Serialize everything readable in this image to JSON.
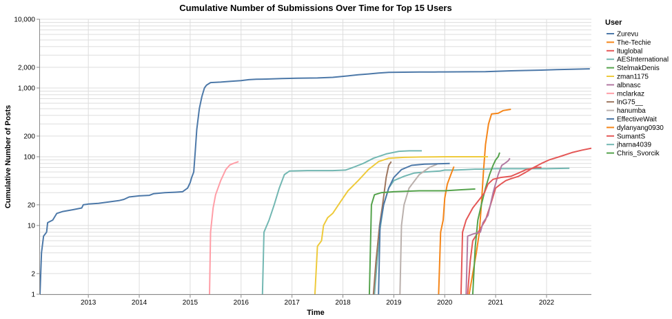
{
  "chart_data": {
    "type": "line",
    "title": "Cumulative Number of Submissions Over Time for Top 15 Users",
    "xlabel": "Time",
    "ylabel": "Cumulative Number of Posts",
    "yscale": "log",
    "ylim": [
      1,
      10000
    ],
    "xlim": [
      2012.05,
      2022.88
    ],
    "x_tick_labels": [
      "2013",
      "2014",
      "2015",
      "2016",
      "2017",
      "2018",
      "2019",
      "2020",
      "2021",
      "2022"
    ],
    "x_tick_values": [
      2013,
      2014,
      2015,
      2016,
      2017,
      2018,
      2019,
      2020,
      2021,
      2022
    ],
    "y_tick_labels": [
      "1",
      "2",
      "10",
      "20",
      "100",
      "200",
      "1,000",
      "2,000",
      "10,000"
    ],
    "y_tick_values": [
      1,
      2,
      10,
      20,
      100,
      200,
      1000,
      2000,
      10000
    ],
    "grid": true,
    "legend_title": "User",
    "legend_position": "right",
    "series": [
      {
        "name": "Zurevu",
        "color": "#4c78a8",
        "points": [
          [
            2012.05,
            1
          ],
          [
            2012.08,
            4
          ],
          [
            2012.12,
            7
          ],
          [
            2012.18,
            8
          ],
          [
            2012.2,
            11
          ],
          [
            2012.3,
            12
          ],
          [
            2012.38,
            15
          ],
          [
            2012.5,
            16
          ],
          [
            2012.7,
            17
          ],
          [
            2012.87,
            18
          ],
          [
            2012.9,
            20
          ],
          [
            2013.0,
            20.5
          ],
          [
            2013.2,
            21
          ],
          [
            2013.4,
            22
          ],
          [
            2013.6,
            23
          ],
          [
            2013.7,
            24
          ],
          [
            2013.8,
            26
          ],
          [
            2014.0,
            27
          ],
          [
            2014.2,
            27.5
          ],
          [
            2014.28,
            29
          ],
          [
            2014.5,
            30
          ],
          [
            2014.7,
            30.5
          ],
          [
            2014.85,
            31
          ],
          [
            2014.95,
            35
          ],
          [
            2015.0,
            42
          ],
          [
            2015.03,
            50
          ],
          [
            2015.07,
            60
          ],
          [
            2015.1,
            120
          ],
          [
            2015.13,
            250
          ],
          [
            2015.18,
            500
          ],
          [
            2015.23,
            750
          ],
          [
            2015.28,
            1000
          ],
          [
            2015.32,
            1100
          ],
          [
            2015.4,
            1200
          ],
          [
            2015.6,
            1220
          ],
          [
            2015.8,
            1250
          ],
          [
            2016.0,
            1280
          ],
          [
            2016.15,
            1320
          ],
          [
            2016.3,
            1340
          ],
          [
            2016.5,
            1350
          ],
          [
            2016.8,
            1370
          ],
          [
            2017.1,
            1390
          ],
          [
            2017.5,
            1400
          ],
          [
            2017.8,
            1430
          ],
          [
            2018.1,
            1500
          ],
          [
            2018.3,
            1560
          ],
          [
            2018.5,
            1600
          ],
          [
            2018.7,
            1650
          ],
          [
            2018.9,
            1690
          ],
          [
            2019.2,
            1700
          ],
          [
            2019.5,
            1705
          ],
          [
            2019.8,
            1710
          ],
          [
            2020.0,
            1715
          ],
          [
            2020.5,
            1720
          ],
          [
            2020.8,
            1730
          ],
          [
            2021.0,
            1750
          ],
          [
            2021.3,
            1780
          ],
          [
            2021.6,
            1800
          ],
          [
            2021.9,
            1820
          ],
          [
            2022.2,
            1850
          ],
          [
            2022.5,
            1870
          ],
          [
            2022.85,
            1900
          ]
        ]
      },
      {
        "name": "The-Techie",
        "color": "#f58518",
        "points": [
          [
            2020.48,
            1
          ],
          [
            2020.55,
            2
          ],
          [
            2020.62,
            4
          ],
          [
            2020.68,
            8
          ],
          [
            2020.72,
            20
          ],
          [
            2020.76,
            60
          ],
          [
            2020.8,
            150
          ],
          [
            2020.86,
            300
          ],
          [
            2020.92,
            420
          ],
          [
            2021.05,
            430
          ],
          [
            2021.15,
            470
          ],
          [
            2021.3,
            490
          ]
        ]
      },
      {
        "name": "ltuglobal",
        "color": "#e45756",
        "points": [
          [
            2020.45,
            1
          ],
          [
            2020.5,
            3
          ],
          [
            2020.55,
            6
          ],
          [
            2020.7,
            9
          ],
          [
            2020.8,
            12
          ],
          [
            2020.9,
            20
          ],
          [
            2021.0,
            35
          ],
          [
            2021.1,
            40
          ],
          [
            2021.2,
            45
          ],
          [
            2021.3,
            48
          ],
          [
            2021.45,
            52
          ],
          [
            2021.6,
            60
          ],
          [
            2021.75,
            70
          ],
          [
            2021.9,
            80
          ],
          [
            2022.05,
            90
          ],
          [
            2022.25,
            100
          ],
          [
            2022.5,
            115
          ],
          [
            2022.7,
            125
          ],
          [
            2022.88,
            133
          ]
        ]
      },
      {
        "name": "AESInternational",
        "color": "#72b7b2",
        "points": [
          [
            2018.62,
            1
          ],
          [
            2018.72,
            8
          ],
          [
            2018.8,
            20
          ],
          [
            2018.9,
            35
          ],
          [
            2019.0,
            45
          ],
          [
            2019.2,
            52
          ],
          [
            2019.4,
            58
          ],
          [
            2019.6,
            60
          ],
          [
            2019.9,
            62
          ],
          [
            2020.0,
            64
          ],
          [
            2020.2,
            64
          ],
          [
            2020.4,
            65
          ],
          [
            2020.6,
            66
          ],
          [
            2020.8,
            66
          ],
          [
            2021.0,
            67
          ],
          [
            2021.5,
            67
          ],
          [
            2022.0,
            67
          ],
          [
            2022.45,
            68
          ]
        ]
      },
      {
        "name": "StelmakDenis",
        "color": "#54a24b",
        "points": [
          [
            2020.55,
            1
          ],
          [
            2020.6,
            5
          ],
          [
            2020.65,
            12
          ],
          [
            2020.72,
            20
          ],
          [
            2020.8,
            35
          ],
          [
            2020.88,
            55
          ],
          [
            2020.95,
            75
          ],
          [
            2021.0,
            90
          ],
          [
            2021.05,
            100
          ],
          [
            2021.08,
            115
          ]
        ]
      },
      {
        "name": "zman1175",
        "color": "#eeca3b",
        "points": [
          [
            2017.45,
            1
          ],
          [
            2017.5,
            5
          ],
          [
            2017.58,
            6
          ],
          [
            2017.62,
            10
          ],
          [
            2017.7,
            13
          ],
          [
            2017.8,
            15
          ],
          [
            2017.95,
            22
          ],
          [
            2018.1,
            32
          ],
          [
            2018.3,
            45
          ],
          [
            2018.5,
            65
          ],
          [
            2018.7,
            85
          ],
          [
            2018.9,
            95
          ],
          [
            2019.2,
            98
          ],
          [
            2019.5,
            99
          ],
          [
            2020.0,
            100
          ],
          [
            2020.5,
            100
          ],
          [
            2020.85,
            100
          ]
        ]
      },
      {
        "name": "albnasc",
        "color": "#b279a2",
        "points": [
          [
            2020.42,
            1
          ],
          [
            2020.45,
            7
          ],
          [
            2020.55,
            7.5
          ],
          [
            2020.7,
            8
          ],
          [
            2020.75,
            11
          ],
          [
            2020.85,
            14
          ],
          [
            2020.95,
            30
          ],
          [
            2021.05,
            55
          ],
          [
            2021.12,
            75
          ],
          [
            2021.18,
            80
          ],
          [
            2021.25,
            88
          ],
          [
            2021.28,
            95
          ]
        ]
      },
      {
        "name": "mclarkaz",
        "color": "#ff9da6",
        "points": [
          [
            2015.38,
            1
          ],
          [
            2015.4,
            8
          ],
          [
            2015.45,
            18
          ],
          [
            2015.5,
            28
          ],
          [
            2015.6,
            45
          ],
          [
            2015.7,
            65
          ],
          [
            2015.78,
            76
          ],
          [
            2015.85,
            80
          ],
          [
            2015.95,
            85
          ]
        ]
      },
      {
        "name": "lnG75__",
        "color": "#9d755d",
        "points": [
          [
            2018.6,
            1
          ],
          [
            2018.65,
            3
          ],
          [
            2018.72,
            10
          ],
          [
            2018.78,
            20
          ],
          [
            2018.85,
            50
          ],
          [
            2018.9,
            75
          ],
          [
            2018.95,
            85
          ]
        ]
      },
      {
        "name": "hanumba",
        "color": "#bab0ac",
        "points": [
          [
            2019.12,
            1
          ],
          [
            2019.15,
            10
          ],
          [
            2019.2,
            20
          ],
          [
            2019.3,
            35
          ],
          [
            2019.5,
            55
          ],
          [
            2019.7,
            70
          ],
          [
            2019.85,
            78
          ]
        ]
      },
      {
        "name": "EffectiveWait",
        "color": "#4c78a8",
        "points": [
          [
            2018.7,
            1
          ],
          [
            2018.73,
            10
          ],
          [
            2018.8,
            20
          ],
          [
            2018.9,
            35
          ],
          [
            2019.0,
            50
          ],
          [
            2019.15,
            65
          ],
          [
            2019.35,
            75
          ],
          [
            2019.6,
            78
          ],
          [
            2020.1,
            80
          ]
        ]
      },
      {
        "name": "dylanyang0930",
        "color": "#f58518",
        "points": [
          [
            2019.88,
            1
          ],
          [
            2019.92,
            8
          ],
          [
            2019.97,
            12
          ],
          [
            2020.0,
            25
          ],
          [
            2020.05,
            40
          ],
          [
            2020.12,
            55
          ],
          [
            2020.18,
            72
          ]
        ]
      },
      {
        "name": "SumantS",
        "color": "#e45756",
        "points": [
          [
            2020.32,
            1
          ],
          [
            2020.35,
            8
          ],
          [
            2020.42,
            12
          ],
          [
            2020.55,
            18
          ],
          [
            2020.7,
            25
          ],
          [
            2020.78,
            30
          ],
          [
            2020.85,
            40
          ],
          [
            2020.95,
            47
          ],
          [
            2021.1,
            50
          ],
          [
            2021.3,
            52
          ],
          [
            2021.45,
            58
          ],
          [
            2021.6,
            65
          ],
          [
            2021.8,
            70
          ],
          [
            2021.9,
            70
          ]
        ]
      },
      {
        "name": "jharna4039",
        "color": "#72b7b2",
        "points": [
          [
            2016.42,
            1
          ],
          [
            2016.45,
            8
          ],
          [
            2016.55,
            12
          ],
          [
            2016.65,
            20
          ],
          [
            2016.75,
            35
          ],
          [
            2016.85,
            55
          ],
          [
            2016.95,
            62
          ],
          [
            2017.3,
            63
          ],
          [
            2017.8,
            63
          ],
          [
            2018.05,
            64
          ],
          [
            2018.2,
            70
          ],
          [
            2018.4,
            80
          ],
          [
            2018.6,
            95
          ],
          [
            2018.85,
            110
          ],
          [
            2019.1,
            120
          ],
          [
            2019.3,
            122
          ],
          [
            2019.55,
            122
          ]
        ]
      },
      {
        "name": "Chris_Svorcik",
        "color": "#54a24b",
        "points": [
          [
            2018.52,
            1
          ],
          [
            2018.56,
            20
          ],
          [
            2018.62,
            28
          ],
          [
            2018.75,
            30
          ],
          [
            2019.0,
            31
          ],
          [
            2019.5,
            32
          ],
          [
            2020.0,
            32
          ],
          [
            2020.3,
            33
          ],
          [
            2020.6,
            34
          ]
        ]
      }
    ]
  }
}
